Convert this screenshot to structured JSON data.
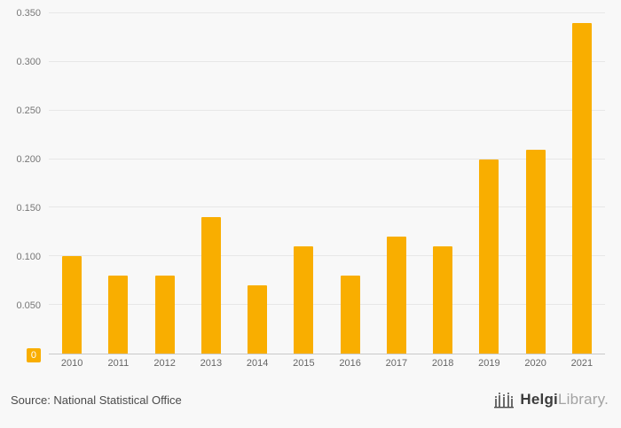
{
  "chart_data": {
    "type": "bar",
    "categories": [
      "2010",
      "2011",
      "2012",
      "2013",
      "2014",
      "2015",
      "2016",
      "2017",
      "2018",
      "2019",
      "2020",
      "2021"
    ],
    "values": [
      0.1,
      0.08,
      0.08,
      0.14,
      0.07,
      0.11,
      0.08,
      0.12,
      0.11,
      0.2,
      0.21,
      0.34
    ],
    "title": "",
    "xlabel": "",
    "ylabel": "",
    "ylim": [
      0,
      0.35
    ],
    "yticks": [
      0,
      0.05,
      0.1,
      0.15,
      0.2,
      0.25,
      0.3,
      0.35
    ],
    "ytick_labels": [
      "0",
      "0.050",
      "0.100",
      "0.150",
      "0.200",
      "0.250",
      "0.300",
      "0.350"
    ],
    "bar_color": "#f9ae00",
    "grid": true,
    "legend": "none",
    "zero_label_highlighted": true
  },
  "colors": {
    "accent": "#f9ae00",
    "background": "#f8f8f8",
    "grid_line": "#e7e7e7",
    "axis_line": "#c9c9c9"
  },
  "footer": {
    "source": "Source: National Statistical Office",
    "logo_icon": "bridge-bars-icon",
    "logo_bold": "Helgi",
    "logo_light": "Library",
    "logo_dot": "."
  }
}
